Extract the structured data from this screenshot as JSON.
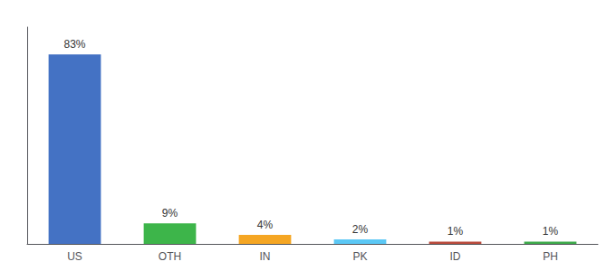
{
  "chart_data": {
    "type": "bar",
    "categories": [
      "US",
      "OTH",
      "IN",
      "PK",
      "ID",
      "PH"
    ],
    "values": [
      83,
      9,
      4,
      2,
      1,
      1
    ],
    "value_labels": [
      "83%",
      "9%",
      "4%",
      "2%",
      "1%",
      "1%"
    ],
    "data_labels": true,
    "colors": [
      "#4472c4",
      "#3db54a",
      "#f5a623",
      "#5bc8f5",
      "#b94a3b",
      "#3daa4a"
    ],
    "ylim": [
      0,
      95
    ],
    "tick_labels": "x",
    "grid": false
  }
}
